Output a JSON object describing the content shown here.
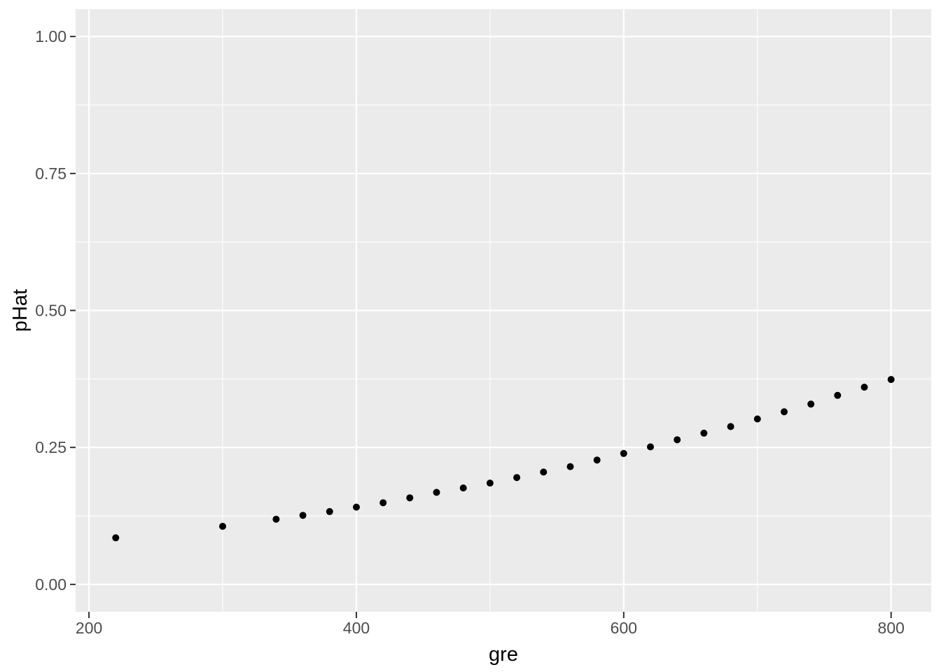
{
  "chart_data": {
    "type": "scatter",
    "title": "",
    "xlabel": "gre",
    "ylabel": "pHat",
    "x": [
      220,
      300,
      340,
      360,
      380,
      400,
      420,
      440,
      460,
      480,
      500,
      520,
      540,
      560,
      580,
      600,
      620,
      640,
      660,
      680,
      700,
      720,
      740,
      760,
      780,
      800
    ],
    "y": [
      0.085,
      0.106,
      0.119,
      0.126,
      0.133,
      0.141,
      0.149,
      0.158,
      0.168,
      0.176,
      0.185,
      0.195,
      0.205,
      0.215,
      0.227,
      0.239,
      0.251,
      0.264,
      0.276,
      0.288,
      0.302,
      0.315,
      0.329,
      0.345,
      0.36,
      0.374
    ],
    "xlim": [
      190,
      830
    ],
    "ylim": [
      -0.05,
      1.05
    ],
    "x_major_ticks": {
      "values": [
        200,
        400,
        600,
        800
      ],
      "labels": [
        "200",
        "400",
        "600",
        "800"
      ]
    },
    "y_major_ticks": {
      "values": [
        0.0,
        0.25,
        0.5,
        0.75,
        1.0
      ],
      "labels": [
        "0.00",
        "0.25",
        "0.50",
        "0.75",
        "1.00"
      ]
    },
    "x_minor_gridlines": [
      300,
      500,
      700
    ],
    "y_minor_gridlines": [
      0.125,
      0.375,
      0.625,
      0.875
    ],
    "grid": true,
    "legend": "none",
    "style": {
      "panel_bg": "#EBEBEB",
      "outer_bg": "#FFFFFF",
      "grid_color": "#FFFFFF",
      "point_color": "#000000",
      "axis_text_color": "#4D4D4D",
      "tick_mark_color": "#333333",
      "axis_title_color": "#000000"
    }
  }
}
